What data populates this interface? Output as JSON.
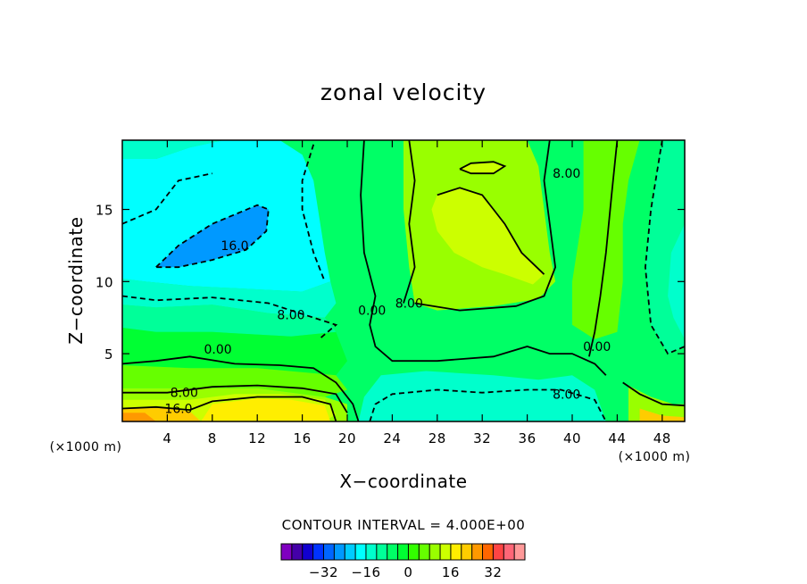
{
  "chart_data": {
    "type": "heatmap",
    "title": "zonal velocity",
    "xlabel": "X−coordinate",
    "ylabel": "Z−coordinate",
    "x_unit": "(×1000 m)",
    "z_unit": "(×1000 m)",
    "xlim": [
      0,
      50
    ],
    "ylim": [
      0.3,
      19.8
    ],
    "x_ticks": [
      4,
      8,
      12,
      16,
      20,
      24,
      28,
      32,
      36,
      40,
      44,
      48
    ],
    "y_ticks": [
      5,
      10,
      15
    ],
    "contour_interval_text": "CONTOUR INTERVAL = 4.000E+00",
    "contour_interval": 4,
    "contour_labels": [
      {
        "text": "16.0",
        "x": 10.0,
        "z": 12.5
      },
      {
        "text": "8.00",
        "x": 15.0,
        "z": 7.7
      },
      {
        "text": "0.00",
        "x": 8.5,
        "z": 5.3
      },
      {
        "text": "8.00",
        "x": 5.5,
        "z": 2.3
      },
      {
        "text": "16.0",
        "x": 5.0,
        "z": 1.2
      },
      {
        "text": "0.00",
        "x": 22.2,
        "z": 8.0
      },
      {
        "text": "8.00",
        "x": 25.5,
        "z": 8.5
      },
      {
        "text": "8.00",
        "x": 39.5,
        "z": 17.5
      },
      {
        "text": "0.00",
        "x": 42.2,
        "z": 5.5
      },
      {
        "text": "8.00",
        "x": 39.5,
        "z": 2.2
      }
    ],
    "colorbar": {
      "levels": [
        -40,
        -36,
        -32,
        -28,
        -24,
        -20,
        -16,
        -12,
        -8,
        -4,
        0,
        4,
        8,
        12,
        16,
        20,
        24,
        28,
        32,
        36
      ],
      "tick_values": [
        -32,
        -16,
        0,
        16,
        32
      ],
      "tick_labels": [
        "−32",
        "−16",
        "0",
        "16",
        "32"
      ],
      "colors": [
        "#7f00c0",
        "#4400a8",
        "#1100d0",
        "#0033ff",
        "#0066ff",
        "#0099ff",
        "#00ccff",
        "#00ffff",
        "#00ffcc",
        "#00ff99",
        "#00ff66",
        "#00ff33",
        "#33ff00",
        "#66ff00",
        "#99ff00",
        "#ccff00",
        "#ffee00",
        "#ffcc00",
        "#ff9900",
        "#ff6600",
        "#ff4444",
        "#ff6677",
        "#ff9999"
      ]
    }
  }
}
